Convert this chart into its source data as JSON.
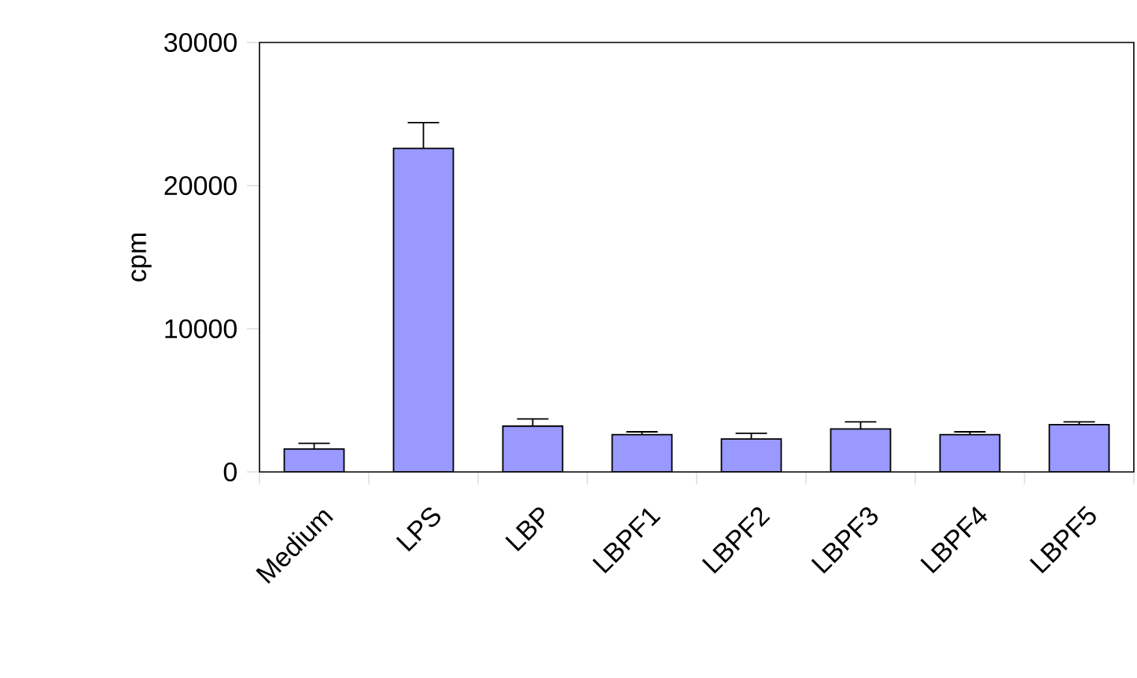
{
  "chart_data": {
    "type": "bar",
    "ylabel": "cpm",
    "categories": [
      "Medium",
      "LPS",
      "LBP",
      "LBPF1",
      "LBPF2",
      "LBPF3",
      "LBPF4",
      "LBPF5"
    ],
    "values": [
      1600,
      22600,
      3200,
      2600,
      2300,
      3000,
      2600,
      3300
    ],
    "errors": [
      400,
      1800,
      500,
      200,
      400,
      500,
      200,
      200
    ],
    "color": "#9999ff",
    "ylim": [
      0,
      30000
    ],
    "yticks": [
      0,
      10000,
      20000,
      30000
    ]
  }
}
